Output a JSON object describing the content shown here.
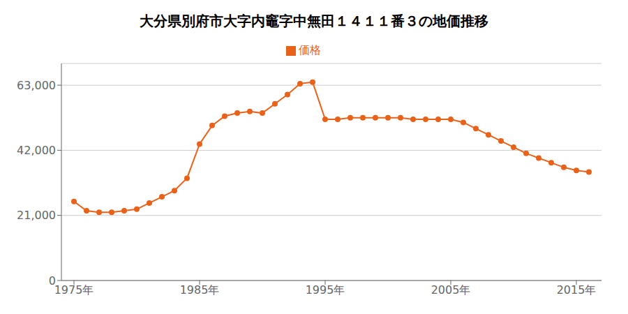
{
  "chart_data": {
    "type": "line",
    "title": "大分県別府市大字内竈字中無田１４１１番３の地価推移",
    "x": [
      1975,
      1976,
      1977,
      1978,
      1979,
      1980,
      1981,
      1982,
      1983,
      1984,
      1985,
      1986,
      1987,
      1988,
      1989,
      1990,
      1991,
      1992,
      1993,
      1994,
      1995,
      1996,
      1997,
      1998,
      1999,
      2000,
      2001,
      2002,
      2003,
      2004,
      2005,
      2006,
      2007,
      2008,
      2009,
      2010,
      2011,
      2012,
      2013,
      2014,
      2015,
      2016
    ],
    "series": [
      {
        "name": "価格",
        "color": "#e8621a",
        "marker": "circle",
        "values": [
          25500,
          22500,
          22000,
          22000,
          22500,
          23000,
          25000,
          27000,
          29000,
          33000,
          44000,
          50000,
          53000,
          54000,
          54500,
          54000,
          57000,
          60000,
          63500,
          64000,
          52000,
          52000,
          52500,
          52500,
          52500,
          52500,
          52500,
          52000,
          52000,
          52000,
          52000,
          51000,
          49000,
          47000,
          45000,
          43000,
          41000,
          39500,
          38000,
          36500,
          35500,
          35000
        ]
      }
    ],
    "xlim": [
      1974,
      2017
    ],
    "xticks": [
      {
        "value": 1975,
        "label": "1975年"
      },
      {
        "value": 1985,
        "label": "1985年"
      },
      {
        "value": 1995,
        "label": "1995年"
      },
      {
        "value": 2005,
        "label": "2005年"
      },
      {
        "value": 2015,
        "label": "2015年"
      }
    ],
    "ylim": [
      0,
      70000
    ],
    "yticks": [
      0,
      {
        "value": 21000,
        "label": "21,000"
      },
      {
        "value": 42000,
        "label": "42,000"
      },
      {
        "value": 63000,
        "label": "63,000"
      }
    ],
    "grid": "y",
    "legend": "top"
  }
}
